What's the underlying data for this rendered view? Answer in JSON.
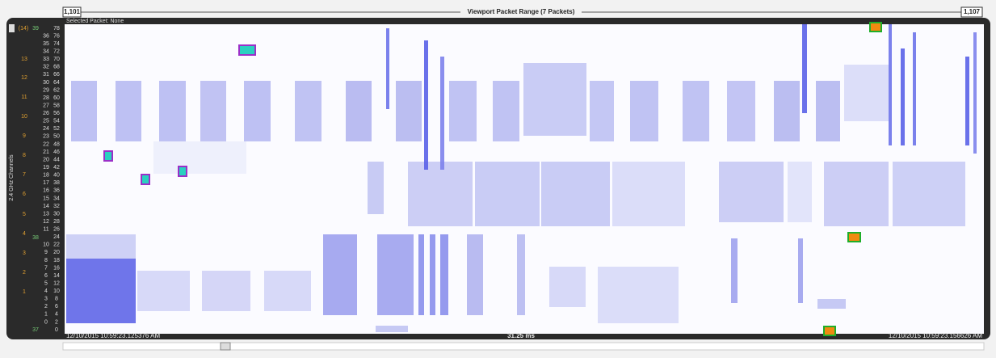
{
  "header": {
    "range_start": "1,101",
    "title": "Viewport Packet Range (7 Packets)",
    "range_end": "1,107"
  },
  "selected_packet": "Selected Packet: None",
  "left_axis": {
    "title": "2.4 GHz Channels",
    "channels": [
      "(14)",
      "13",
      "12",
      "11",
      "10",
      "9",
      "8",
      "7",
      "6",
      "5",
      "4",
      "3",
      "2",
      "1"
    ],
    "markers": [
      "39",
      "38",
      "37"
    ],
    "sub_channels": [
      "36",
      "35",
      "34",
      "33",
      "32",
      "31",
      "30",
      "29",
      "28",
      "27",
      "26",
      "25",
      "24",
      "23",
      "22",
      "21",
      "20",
      "19",
      "18",
      "17",
      "16",
      "15",
      "14",
      "13",
      "12",
      "11",
      "10",
      "9",
      "8",
      "7",
      "6",
      "5",
      "4",
      "3",
      "2",
      "1",
      "0"
    ],
    "bins": [
      "78",
      "76",
      "74",
      "72",
      "70",
      "68",
      "66",
      "64",
      "62",
      "60",
      "58",
      "56",
      "54",
      "52",
      "50",
      "48",
      "46",
      "44",
      "42",
      "40",
      "38",
      "36",
      "34",
      "32",
      "30",
      "28",
      "26",
      "24",
      "22",
      "20",
      "18",
      "16",
      "14",
      "12",
      "10",
      "8",
      "6",
      "4",
      "2",
      "0"
    ]
  },
  "footer": {
    "start_time": "12/10/2015 10:59:23.125376 AM",
    "duration": "31.25 ms",
    "end_time": "12/10/2015 10:59:23.156626 AM"
  }
}
